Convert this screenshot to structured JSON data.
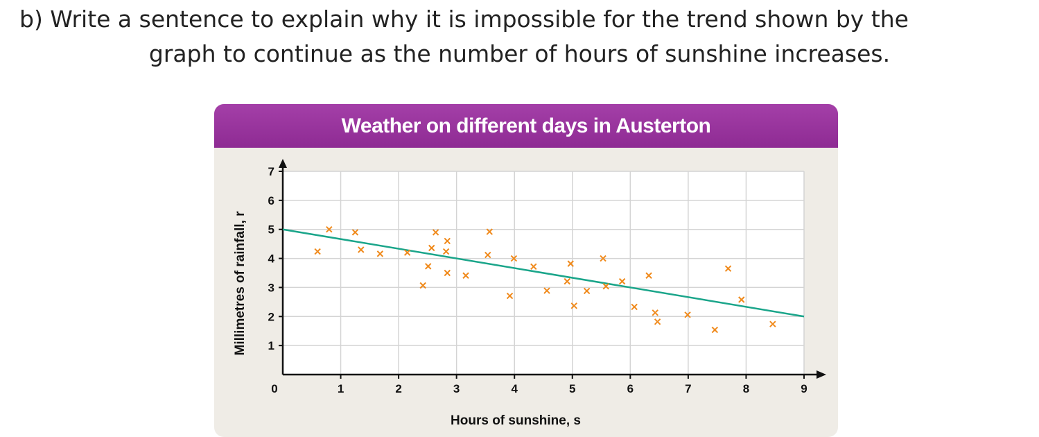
{
  "question": {
    "line1": "b) Write a sentence to explain why it is impossible for the trend shown by the",
    "line2": "graph to continue as the number of hours of sunshine increases."
  },
  "chart_data": {
    "type": "scatter",
    "title": "Weather on different days in Austerton",
    "xlabel": "Hours of sunshine, s",
    "ylabel": "Millimetres of rainfall, r",
    "xlim": [
      0,
      9
    ],
    "ylim": [
      0,
      7
    ],
    "xticks": [
      "0",
      "1",
      "2",
      "3",
      "4",
      "5",
      "6",
      "7",
      "8",
      "9"
    ],
    "yticks": [
      "1",
      "2",
      "3",
      "4",
      "5",
      "6",
      "7"
    ],
    "grid": true,
    "colors": {
      "points": "#f08a1c",
      "trend": "#1aa58a",
      "header": "#9a35a0"
    },
    "points": [
      [
        0.6,
        4.24
      ],
      [
        0.8,
        5.0
      ],
      [
        1.25,
        4.9
      ],
      [
        1.35,
        4.3
      ],
      [
        1.68,
        4.16
      ],
      [
        2.15,
        4.2
      ],
      [
        2.42,
        3.07
      ],
      [
        2.51,
        3.73
      ],
      [
        2.57,
        4.36
      ],
      [
        2.64,
        4.9
      ],
      [
        2.82,
        4.24
      ],
      [
        2.84,
        4.6
      ],
      [
        2.84,
        3.5
      ],
      [
        3.16,
        3.41
      ],
      [
        3.57,
        4.92
      ],
      [
        3.54,
        4.12
      ],
      [
        3.99,
        4.0
      ],
      [
        3.92,
        2.71
      ],
      [
        4.33,
        3.72
      ],
      [
        4.56,
        2.89
      ],
      [
        4.97,
        3.82
      ],
      [
        4.91,
        3.21
      ],
      [
        5.03,
        2.37
      ],
      [
        5.25,
        2.88
      ],
      [
        5.53,
        4.0
      ],
      [
        5.58,
        3.04
      ],
      [
        5.86,
        3.21
      ],
      [
        6.07,
        2.33
      ],
      [
        6.32,
        3.41
      ],
      [
        6.43,
        2.13
      ],
      [
        6.47,
        1.82
      ],
      [
        6.99,
        2.06
      ],
      [
        7.46,
        1.54
      ],
      [
        7.69,
        3.65
      ],
      [
        7.92,
        2.58
      ],
      [
        8.46,
        1.74
      ]
    ],
    "trend_line": [
      [
        0,
        5
      ],
      [
        9,
        2
      ]
    ]
  }
}
